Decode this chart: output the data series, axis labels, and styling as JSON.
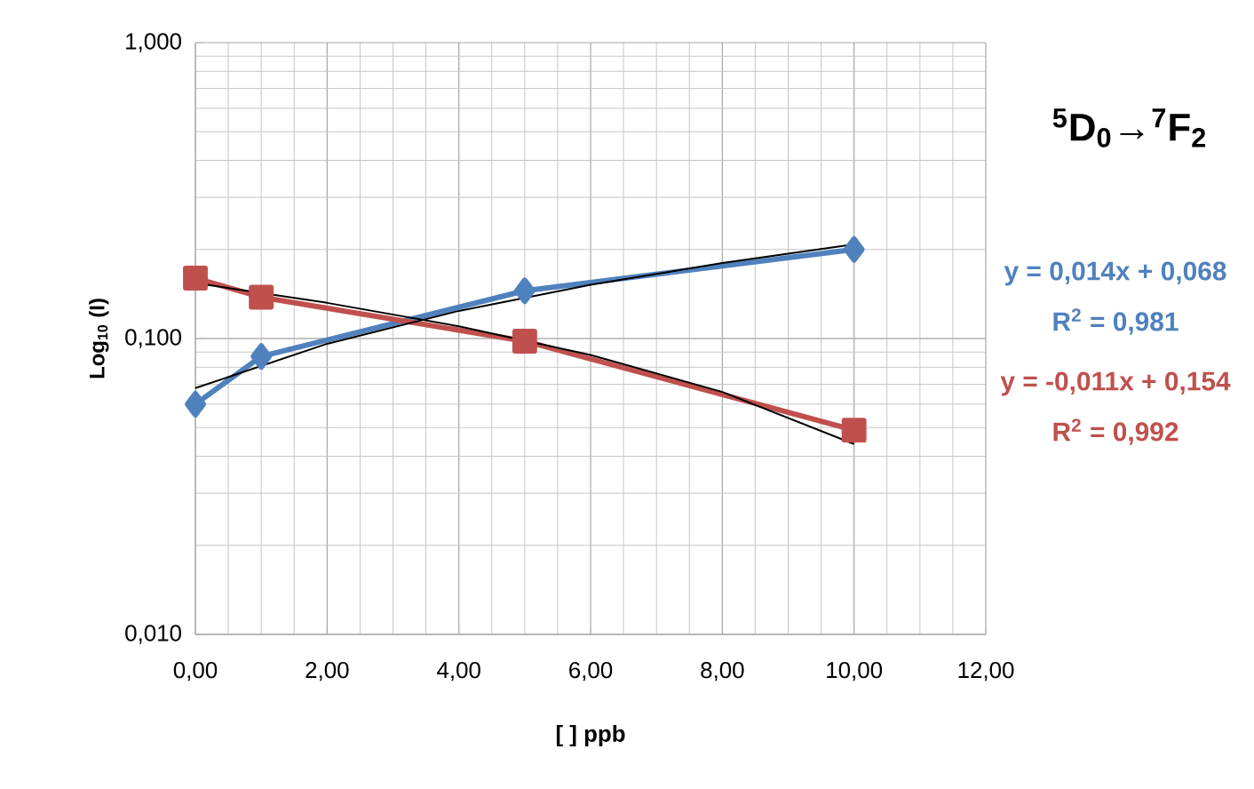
{
  "chart_data": {
    "type": "line",
    "xlabel": "[ ] ppb",
    "ylabel": "Log$_{10}$ (I)",
    "annotations": [
      "$^{5}$D$_{0}$→$^{7}$F$_{2}$",
      "y = 0,014x + 0,068",
      "R$^{2}$ = 0,981",
      "y = -0,011x + 0,154",
      "R$^{2}$ = 0,992"
    ],
    "series": [
      {
        "color": "#4f81bd",
        "marker": "diamond",
        "x": [
          0,
          1,
          5,
          10
        ],
        "values": [
          0.06,
          0.087,
          0.145,
          0.2
        ]
      },
      {
        "color": "#c0504d",
        "marker": "square",
        "x": [
          0,
          1,
          5,
          10
        ],
        "values": [
          0.16,
          0.138,
          0.098,
          0.049
        ]
      },
      {
        "color": "#000000",
        "marker": "none",
        "x": [
          0,
          2,
          4,
          6,
          8,
          10
        ],
        "values": [
          0.068,
          0.096,
          0.124,
          0.152,
          0.18,
          0.208
        ]
      },
      {
        "color": "#000000",
        "marker": "none",
        "x": [
          0,
          2,
          4,
          6,
          8,
          10
        ],
        "values": [
          0.154,
          0.132,
          0.11,
          0.088,
          0.066,
          0.044
        ]
      }
    ],
    "xlim": [
      0,
      12
    ],
    "xticks": [
      {
        "value": 0,
        "label": "0,00"
      },
      {
        "value": 2,
        "label": "2,00"
      },
      {
        "value": 4,
        "label": "4,00"
      },
      {
        "value": 6,
        "label": "6,00"
      },
      {
        "value": 8,
        "label": "8,00"
      },
      {
        "value": 10,
        "label": "10,00"
      },
      {
        "value": 12,
        "label": "12,00"
      }
    ],
    "ylim": [
      0.01,
      1
    ],
    "yticks": [
      {
        "value": 0.01,
        "label": "0,010"
      },
      {
        "value": 0.1,
        "label": "0,100"
      },
      {
        "value": 1,
        "label": "1,000"
      }
    ],
    "log": "y",
    "grid": true
  }
}
